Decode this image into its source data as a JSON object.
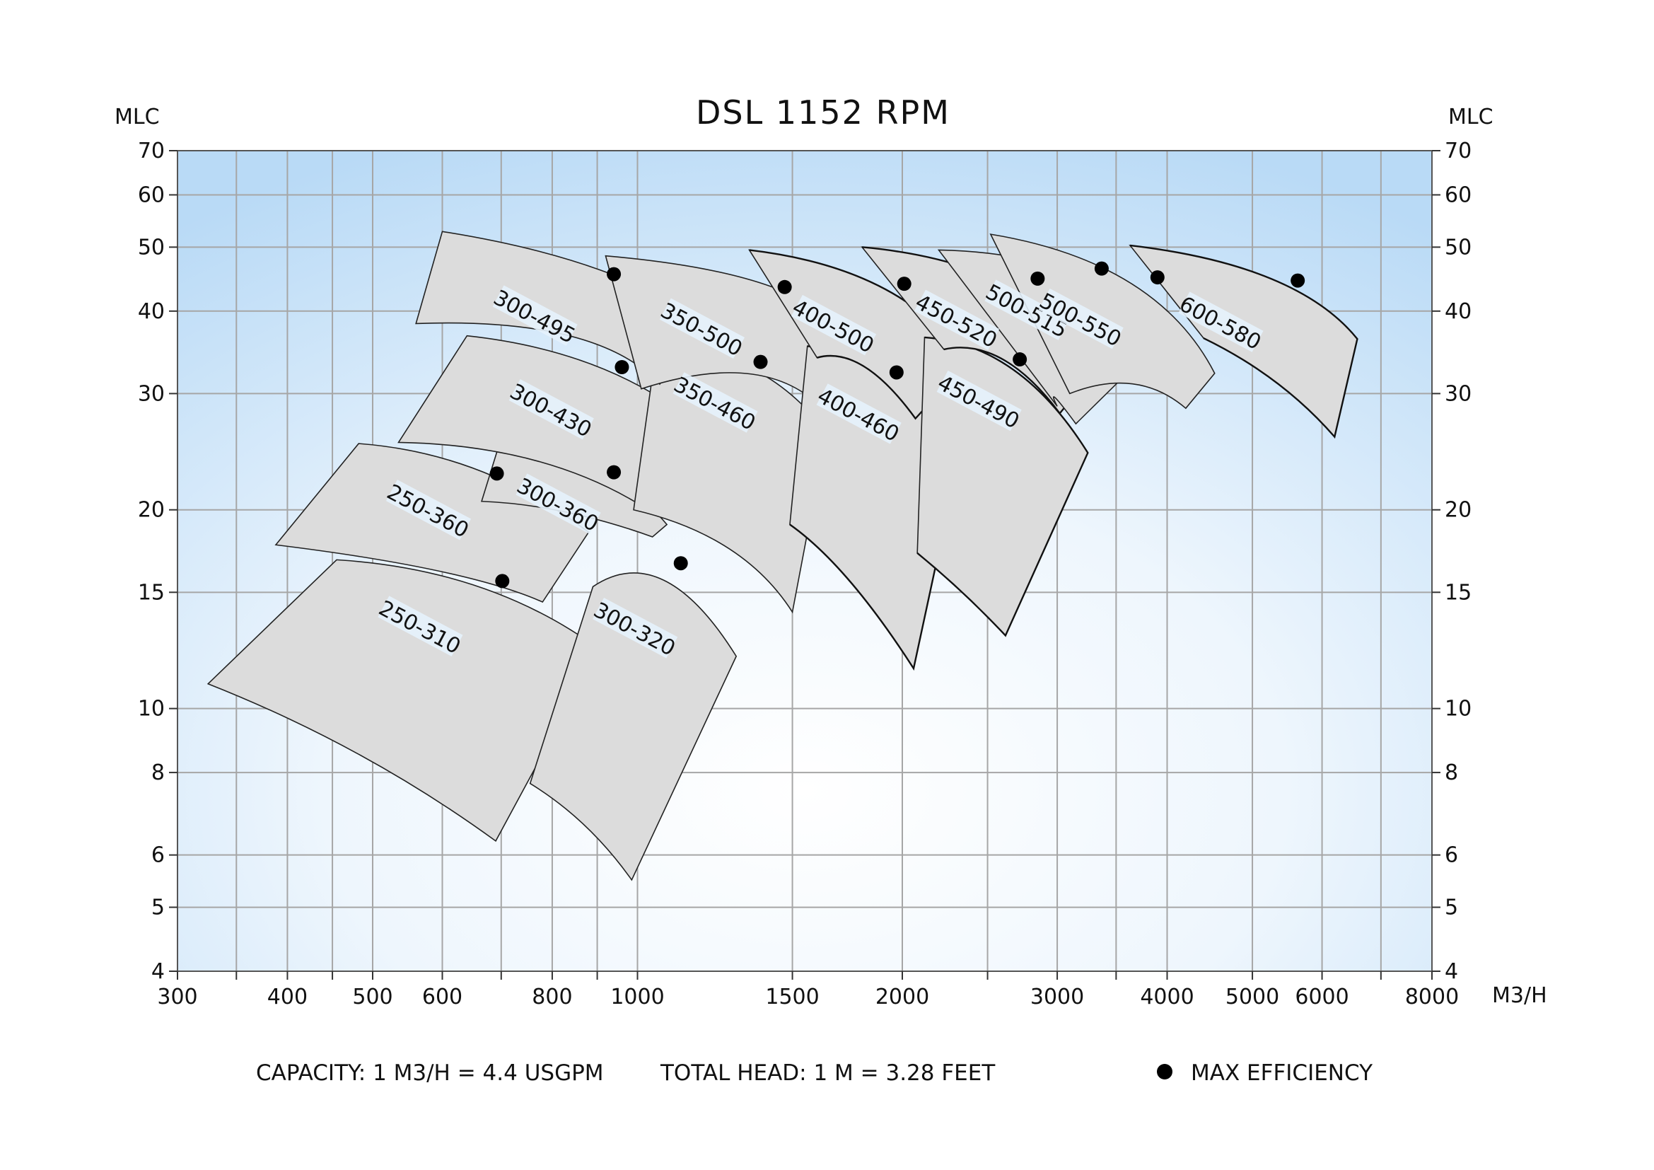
{
  "chart_data": {
    "type": "scatter",
    "title": "DSL 1152 RPM",
    "ylabel_left": "MLC",
    "ylabel_right": "MLC",
    "xunit": "M3/H",
    "xscale": "log",
    "yscale": "log",
    "xlim": [
      300,
      8000
    ],
    "ylim": [
      4,
      70
    ],
    "x_ticks": [
      300,
      400,
      500,
      600,
      800,
      1000,
      1500,
      2000,
      3000,
      4000,
      5000,
      6000,
      8000
    ],
    "x_tick_labels": [
      "300",
      "400",
      "500",
      "600",
      "800",
      "1000",
      "1500",
      "2000",
      "3000",
      "4000",
      "5000",
      "6000",
      "8000"
    ],
    "x_gridlines": [
      300,
      350,
      400,
      450,
      500,
      600,
      700,
      800,
      900,
      1000,
      1500,
      2000,
      2500,
      3000,
      3500,
      4000,
      5000,
      6000,
      7000,
      8000
    ],
    "y_ticks": [
      4,
      5,
      6,
      8,
      10,
      15,
      20,
      30,
      40,
      50,
      60,
      70
    ],
    "y_tick_labels": [
      "4",
      "5",
      "6",
      "8",
      "10",
      "15",
      "20",
      "30",
      "40",
      "50",
      "60",
      "70"
    ],
    "grid": true,
    "background": "light blue gradient",
    "pump_models": [
      {
        "name": "250-310",
        "bep": [
          702,
          15.6
        ],
        "region": [
          [
            325,
            10.9
          ],
          [
            455,
            16.8
          ],
          [
            680,
            15.4
          ],
          [
            905,
            12.3
          ],
          [
            690,
            6.3
          ],
          [
            490,
            8.4
          ]
        ]
      },
      {
        "name": "300-320",
        "bep": [
          1120,
          16.6
        ],
        "region": [
          [
            755,
            7.7
          ],
          [
            890,
            15.3
          ],
          [
            1070,
            17.1
          ],
          [
            1295,
            12.0
          ],
          [
            985,
            5.5
          ],
          [
            880,
            6.5
          ]
        ]
      },
      {
        "name": "250-360",
        "bep": [
          692,
          22.7
        ],
        "region": [
          [
            388,
            17.7
          ],
          [
            482,
            25.2
          ],
          [
            670,
            23.1
          ],
          [
            880,
            18.5
          ],
          [
            780,
            14.5
          ],
          [
            640,
            15.6
          ]
        ]
      },
      {
        "name": "300-360",
        "bep": [
          940,
          22.8
        ],
        "region": [
          [
            665,
            20.6
          ],
          [
            700,
            25.7
          ],
          [
            910,
            23.6
          ],
          [
            1080,
            19.0
          ],
          [
            1040,
            18.2
          ],
          [
            820,
            19.5
          ]
        ]
      },
      {
        "name": "300-430",
        "bep": [
          960,
          32.9
        ],
        "region": [
          [
            535,
            25.3
          ],
          [
            640,
            36.7
          ],
          [
            960,
            32.8
          ],
          [
            1225,
            25.5
          ],
          [
            1010,
            20.3
          ],
          [
            780,
            24.0
          ]
        ]
      },
      {
        "name": "350-460",
        "bep": [
          1380,
          33.5
        ],
        "region": [
          [
            990,
            20.0
          ],
          [
            1050,
            35.0
          ],
          [
            1380,
            33.6
          ],
          [
            1640,
            26.2
          ],
          [
            1500,
            14.0
          ],
          [
            1320,
            17.5
          ]
        ]
      },
      {
        "name": "300-495",
        "bep": [
          940,
          45.5
        ],
        "region": [
          [
            560,
            38.3
          ],
          [
            600,
            52.8
          ],
          [
            940,
            45.5
          ],
          [
            1185,
            38.6
          ],
          [
            1060,
            31.0
          ],
          [
            900,
            37.5
          ]
        ]
      },
      {
        "name": "350-500",
        "bep": [
          1470,
          43.5
        ],
        "region": [
          [
            1010,
            30.5
          ],
          [
            920,
            48.5
          ],
          [
            1470,
            43.5
          ],
          [
            1660,
            38.5
          ],
          [
            1560,
            29.8
          ],
          [
            1340,
            33.0
          ]
        ]
      },
      {
        "name": "400-460",
        "bep": [
          1970,
          32.3
        ],
        "region": [
          [
            1490,
            19.0
          ],
          [
            1560,
            35.4
          ],
          [
            1970,
            32.3
          ],
          [
            2320,
            24.0
          ],
          [
            2060,
            11.5
          ],
          [
            1730,
            15.8
          ]
        ]
      },
      {
        "name": "400-500",
        "bep": [
          2010,
          44.0
        ],
        "region": [
          [
            1600,
            34.0
          ],
          [
            1340,
            49.5
          ],
          [
            2010,
            44.0
          ],
          [
            2370,
            33.5
          ],
          [
            2070,
            27.5
          ],
          [
            1800,
            34.0
          ]
        ]
      },
      {
        "name": "450-490",
        "bep": [
          2720,
          33.8
        ],
        "region": [
          [
            2080,
            17.2
          ],
          [
            2120,
            36.5
          ],
          [
            2720,
            33.8
          ],
          [
            3250,
            24.4
          ],
          [
            2620,
            12.9
          ],
          [
            2350,
            14.4
          ]
        ]
      },
      {
        "name": "450-520",
        "bep": [
          2850,
          44.8
        ],
        "region": [
          [
            2230,
            35.0
          ],
          [
            1800,
            50.0
          ],
          [
            2850,
            44.8
          ],
          [
            3330,
            32.8
          ],
          [
            3020,
            28.0
          ],
          [
            2600,
            35.0
          ]
        ]
      },
      {
        "name": "500-515",
        "bep": [
          3370,
          46.4
        ],
        "region": [
          [
            3000,
            28.7
          ],
          [
            2200,
            49.5
          ],
          [
            3370,
            46.4
          ],
          [
            3880,
            35.5
          ],
          [
            3150,
            27.0
          ],
          [
            2900,
            30.0
          ]
        ]
      },
      {
        "name": "500-550",
        "bep": [
          3900,
          45.0
        ],
        "region": [
          [
            3100,
            30.0
          ],
          [
            2520,
            52.3
          ],
          [
            3900,
            45.0
          ],
          [
            4530,
            32.2
          ],
          [
            4200,
            28.5
          ],
          [
            3700,
            31.5
          ]
        ]
      },
      {
        "name": "600-580",
        "bep": [
          5630,
          44.5
        ],
        "region": [
          [
            4400,
            36.4
          ],
          [
            3630,
            50.3
          ],
          [
            5630,
            44.5
          ],
          [
            6580,
            36.3
          ],
          [
            6200,
            25.8
          ],
          [
            5400,
            30.5
          ]
        ]
      }
    ],
    "legend": {
      "position": "bottom-right",
      "entries": [
        "MAX EFFICIENCY"
      ]
    },
    "notes": [
      "CAPACITY: 1 M3/H = 4.4 USGPM",
      "TOTAL HEAD: 1 M = 3.28 FEET"
    ]
  }
}
